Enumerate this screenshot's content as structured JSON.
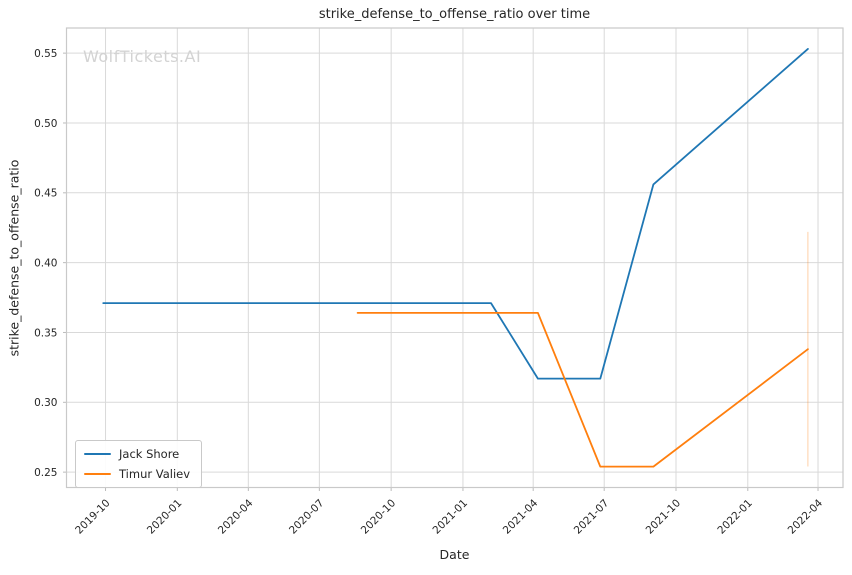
{
  "title": "strike_defense_to_offense_ratio over time",
  "watermark": "WolfTickets.AI",
  "axes": {
    "x_label": "Date",
    "y_label": "strike_defense_to_offense_ratio"
  },
  "legend": {
    "items": [
      {
        "label": "Jack Shore",
        "color": "#1f77b4"
      },
      {
        "label": "Timur Valiev",
        "color": "#ff7f0e"
      }
    ]
  },
  "chart_data": {
    "type": "line",
    "title": "strike_defense_to_offense_ratio over time",
    "xlabel": "Date",
    "ylabel": "strike_defense_to_offense_ratio",
    "grid": true,
    "legend_position": "lower left",
    "x_ticks": [
      "2019-10",
      "2020-01",
      "2020-04",
      "2020-07",
      "2020-10",
      "2021-01",
      "2021-04",
      "2021-07",
      "2021-10",
      "2022-01",
      "2022-04"
    ],
    "y_ticks": [
      0.25,
      0.3,
      0.35,
      0.4,
      0.45,
      0.5,
      0.55
    ],
    "xlim": [
      "2019-08-12",
      "2022-05-03"
    ],
    "ylim": [
      0.239,
      0.568
    ],
    "series": [
      {
        "name": "Jack Shore",
        "color": "#1f77b4",
        "x": [
          "2019-09-28",
          "2021-02-06",
          "2021-04-07",
          "2021-06-26",
          "2021-09-02",
          "2022-03-19"
        ],
        "y": [
          0.371,
          0.371,
          0.317,
          0.317,
          0.456,
          0.553
        ]
      },
      {
        "name": "Timur Valiev",
        "color": "#ff7f0e",
        "x": [
          "2020-08-19",
          "2021-04-07",
          "2021-06-26",
          "2021-09-02",
          "2022-03-19"
        ],
        "y": [
          0.364,
          0.364,
          0.254,
          0.254,
          0.338
        ]
      }
    ],
    "annotations": [
      {
        "type": "vertical-segment",
        "x": "2022-03-19",
        "y_from": 0.254,
        "y_to": 0.422,
        "color": "#ff7f0e",
        "opacity": 0.3
      }
    ],
    "colors": {
      "background": "#ffffff",
      "grid": "#d9d9d9",
      "spine": "#c9c9c9",
      "tick_mark": "#bbbbbb",
      "text": "#262626",
      "watermark": "#d3d3d3"
    }
  }
}
